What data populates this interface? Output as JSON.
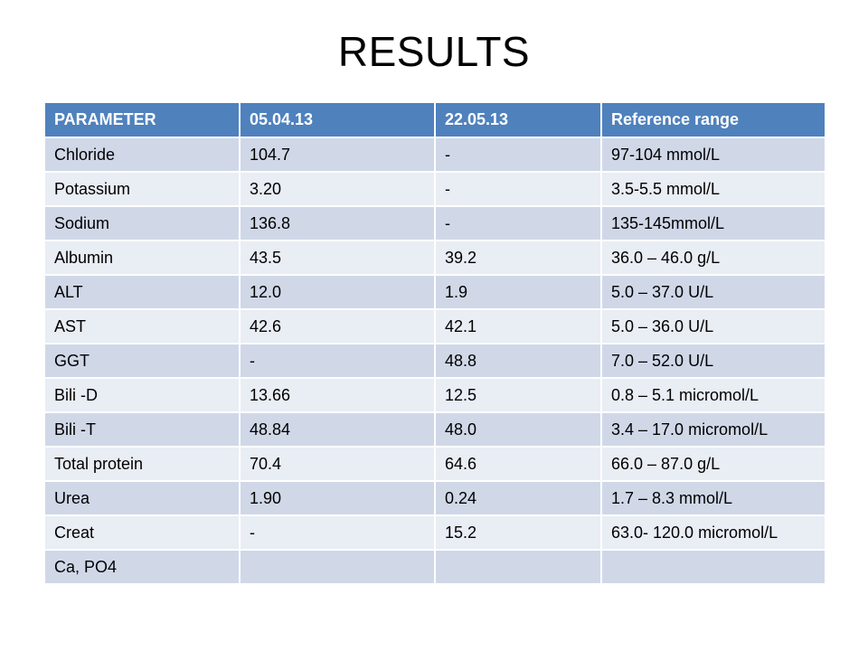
{
  "title": "RESULTS",
  "table": {
    "headers": [
      "PARAMETER",
      "05.04.13",
      "22.05.13",
      "Reference range"
    ],
    "rows": [
      [
        "Chloride",
        "104.7",
        "-",
        "97-104 mmol/L"
      ],
      [
        "Potassium",
        "3.20",
        "-",
        "3.5-5.5 mmol/L"
      ],
      [
        "Sodium",
        "136.8",
        "-",
        "135-145mmol/L"
      ],
      [
        "Albumin",
        "43.5",
        "39.2",
        "36.0 – 46.0 g/L"
      ],
      [
        "ALT",
        "12.0",
        "1.9",
        "5.0 – 37.0 U/L"
      ],
      [
        "AST",
        "42.6",
        "42.1",
        "5.0 – 36.0 U/L"
      ],
      [
        "GGT",
        "-",
        "48.8",
        "7.0 – 52.0 U/L"
      ],
      [
        "Bili -D",
        "13.66",
        "12.5",
        "0.8 – 5.1 micromol/L"
      ],
      [
        "Bili -T",
        "48.84",
        "48.0",
        "3.4 – 17.0 micromol/L"
      ],
      [
        "Total protein",
        "70.4",
        "64.6",
        "66.0 – 87.0 g/L"
      ],
      [
        "Urea",
        "1.90",
        "0.24",
        "1.7 – 8.3 mmol/L"
      ],
      [
        "Creat",
        "-",
        "15.2",
        "63.0- 120.0 micromol/L"
      ],
      [
        "Ca, PO4",
        "",
        "",
        ""
      ]
    ]
  },
  "colors": {
    "header_bg": "#4f81bd",
    "row_odd_bg": "#d0d8e8",
    "row_even_bg": "#e9edf4"
  }
}
